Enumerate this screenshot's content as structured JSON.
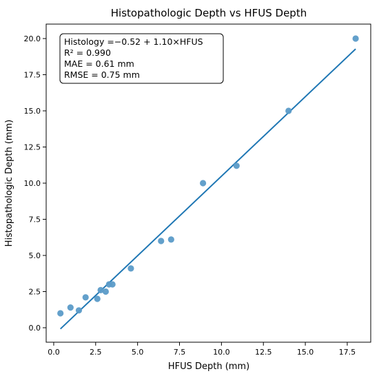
{
  "chart_data": {
    "type": "scatter",
    "title": "Histopathologic Depth vs HFUS Depth",
    "xlabel": "HFUS Depth (mm)",
    "ylabel": "Histopathologic Depth (mm)",
    "xlim": [
      -0.45,
      18.9
    ],
    "ylim": [
      -1.0,
      21.0
    ],
    "xticks": [
      0.0,
      2.5,
      5.0,
      7.5,
      10.0,
      12.5,
      15.0,
      17.5
    ],
    "xtick_labels": [
      "0.0",
      "2.5",
      "5.0",
      "7.5",
      "10.0",
      "12.5",
      "15.0",
      "17.5"
    ],
    "yticks": [
      0.0,
      2.5,
      5.0,
      7.5,
      10.0,
      12.5,
      15.0,
      17.5,
      20.0
    ],
    "ytick_labels": [
      "0.0",
      "2.5",
      "5.0",
      "7.5",
      "10.0",
      "12.5",
      "15.0",
      "17.5",
      "20.0"
    ],
    "grid": false,
    "series": [
      {
        "x": [
          0.4,
          1.0,
          1.5,
          1.9,
          2.6,
          2.8,
          3.1,
          3.3,
          3.5,
          4.6,
          6.4,
          7.0,
          8.9,
          10.9,
          14.0,
          18.0
        ],
        "y": [
          1.0,
          1.4,
          1.2,
          2.1,
          2.0,
          2.6,
          2.5,
          3.0,
          3.0,
          4.1,
          6.0,
          6.1,
          10.0,
          11.2,
          15.0,
          20.0
        ],
        "color": "#5b9bc8"
      }
    ],
    "fit_line": {
      "x": [
        0.4,
        18.0
      ],
      "y": [
        -0.08,
        19.28
      ],
      "color": "#1f77b4"
    },
    "annotation": {
      "lines": [
        "Histology =−0.52 + 1.10×HFUS",
        "R² = 0.990",
        "MAE = 0.61 mm",
        "RMSE = 0.75 mm"
      ],
      "placement": "top-left"
    }
  }
}
